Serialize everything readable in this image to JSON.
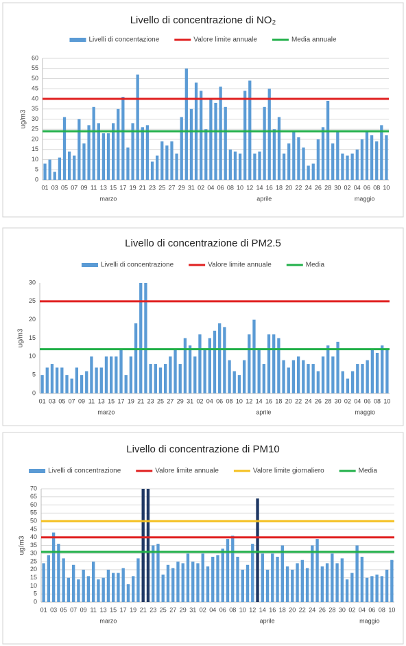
{
  "chart_data": [
    {
      "type": "bar",
      "title": "Livello di concentrazione di NO₂",
      "y_label": "ug/m3",
      "categories": [
        "01",
        null,
        "03",
        null,
        "05",
        null,
        "07",
        null,
        "09",
        null,
        "11",
        null,
        "13",
        null,
        "15",
        null,
        "17",
        null,
        "19",
        null,
        "21",
        null,
        "23",
        null,
        "25",
        null,
        "27",
        null,
        "29",
        null,
        "31",
        null,
        "02",
        null,
        "04",
        null,
        "06",
        null,
        "08",
        null,
        "10",
        null,
        "12",
        null,
        "14",
        null,
        "16",
        null,
        "18",
        null,
        "20",
        null,
        "22",
        null,
        "24",
        null,
        "26",
        null,
        "28",
        null,
        "30",
        null,
        "02",
        null,
        "04",
        null,
        "06",
        null,
        "08",
        null,
        "10"
      ],
      "months": [
        "marzo",
        "aprile",
        "maggio"
      ],
      "series": [
        {
          "name": "Livelli di concentazione",
          "color": "#5b9bd5",
          "values": [
            8,
            10,
            4,
            11,
            31,
            14,
            12,
            30,
            18,
            27,
            36,
            28,
            23,
            23,
            28,
            35,
            41,
            16,
            28,
            52,
            26,
            27,
            9,
            12,
            19,
            17,
            19,
            13,
            31,
            55,
            35,
            48,
            44,
            25,
            40,
            38,
            46,
            36,
            15,
            14,
            13,
            44,
            49,
            13,
            14,
            36,
            45,
            25,
            31,
            13,
            18,
            24,
            21,
            16,
            7,
            8,
            20,
            26,
            39,
            18,
            24,
            13,
            12,
            13,
            15,
            20,
            24,
            22,
            19,
            27,
            22
          ]
        }
      ],
      "lines": [
        {
          "name": "Valore limite annuale",
          "color": "#e02020",
          "value": 40
        },
        {
          "name": "Media annuale",
          "color": "#22b04a",
          "value": 24
        }
      ],
      "ylim": [
        0,
        60
      ],
      "yticks": [
        0,
        5,
        10,
        15,
        20,
        25,
        30,
        35,
        40,
        45,
        50,
        55,
        60
      ],
      "grid": true
    },
    {
      "type": "bar",
      "title": "Livello di concentrazione  di PM2.5",
      "y_label": "ug/m3",
      "categories": [
        "01",
        null,
        "03",
        null,
        "05",
        null,
        "07",
        null,
        "09",
        null,
        "11",
        null,
        "13",
        null,
        "15",
        null,
        "17",
        null,
        "19",
        null,
        "21",
        null,
        "23",
        null,
        "25",
        null,
        "27",
        null,
        "29",
        null,
        "31",
        null,
        "02",
        null,
        "04",
        null,
        "06",
        null,
        "08",
        null,
        "10",
        null,
        "12",
        null,
        "14",
        null,
        "16",
        null,
        "18",
        null,
        "20",
        null,
        "22",
        null,
        "24",
        null,
        "26",
        null,
        "28",
        null,
        "30",
        null,
        "02",
        null,
        "04",
        null,
        "06",
        null,
        "08",
        null,
        "10"
      ],
      "months": [
        "marzo",
        "aprile",
        "maggio"
      ],
      "series": [
        {
          "name": "Livelli di concentrazione",
          "color": "#5b9bd5",
          "values": [
            5,
            7,
            8,
            7,
            7,
            5,
            4,
            7,
            5,
            6,
            10,
            7,
            7,
            10,
            10,
            10,
            12,
            5,
            10,
            19,
            30,
            30,
            8,
            8,
            7,
            8,
            10,
            12,
            8,
            15,
            13,
            10,
            16,
            12,
            15,
            17,
            19,
            18,
            9,
            6,
            5,
            9,
            16,
            20,
            12,
            8,
            16,
            16,
            15,
            9,
            7,
            9,
            10,
            9,
            8,
            8,
            6,
            10,
            13,
            10,
            14,
            6,
            4,
            6,
            8,
            8,
            9,
            12,
            11,
            13,
            12
          ]
        }
      ],
      "lines": [
        {
          "name": "Valore limite annuale",
          "color": "#e02020",
          "value": 25
        },
        {
          "name": "Media",
          "color": "#22b04a",
          "value": 12
        }
      ],
      "ylim": [
        0,
        30
      ],
      "yticks": [
        0,
        5,
        10,
        15,
        20,
        25,
        30
      ],
      "grid": false
    },
    {
      "type": "bar",
      "title": "Livello di concentrazione di PM10",
      "y_label": "ug/m3",
      "categories": [
        "01",
        null,
        "03",
        null,
        "05",
        null,
        "07",
        null,
        "09",
        null,
        "11",
        null,
        "13",
        null,
        "15",
        null,
        "17",
        null,
        "19",
        null,
        "21",
        null,
        "23",
        null,
        "25",
        null,
        "27",
        null,
        "29",
        null,
        "31",
        null,
        "02",
        null,
        "04",
        null,
        "06",
        null,
        "08",
        null,
        "10",
        null,
        "12",
        null,
        "14",
        null,
        "16",
        null,
        "18",
        null,
        "20",
        null,
        "22",
        null,
        "24",
        null,
        "26",
        null,
        "28",
        null,
        "30",
        null,
        "02",
        null,
        "04",
        null,
        "06",
        null,
        "08",
        null,
        "10"
      ],
      "months": [
        "marzo",
        "aprile",
        "maggio"
      ],
      "series": [
        {
          "name": "Livelli di concentrazione",
          "color": "#5b9bd5",
          "exceed_color": "#1f3864",
          "values": [
            24,
            29,
            43,
            36,
            27,
            15,
            23,
            14,
            20,
            16,
            25,
            14,
            15,
            20,
            18,
            18,
            21,
            11,
            16,
            27,
            70,
            70,
            35,
            36,
            17,
            23,
            21,
            25,
            24,
            30,
            25,
            24,
            30,
            22,
            28,
            29,
            33,
            39,
            41,
            28,
            20,
            23,
            36,
            64,
            30,
            20,
            30,
            28,
            35,
            22,
            20,
            24,
            26,
            21,
            35,
            39,
            22,
            24,
            30,
            24,
            27,
            14,
            18,
            35,
            28,
            15,
            16,
            17,
            16,
            20,
            26
          ]
        }
      ],
      "lines": [
        {
          "name": "Valore limite annuale",
          "color": "#e02020",
          "value": 40
        },
        {
          "name": "Valore limite giornaliero",
          "color": "#f5c020",
          "value": 50,
          "exceed": true
        },
        {
          "name": "Media",
          "color": "#22b04a",
          "value": 31
        }
      ],
      "ylim": [
        0,
        70
      ],
      "yticks": [
        0,
        5,
        10,
        15,
        20,
        25,
        30,
        35,
        40,
        45,
        50,
        55,
        60,
        65,
        70
      ],
      "grid": true
    }
  ]
}
